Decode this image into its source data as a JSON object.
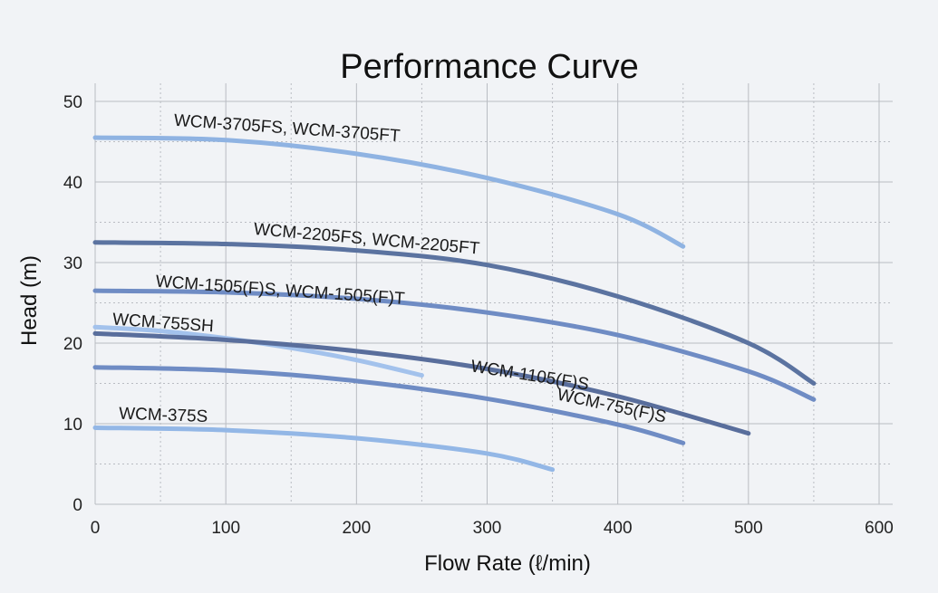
{
  "chart_data": {
    "type": "line",
    "title": "Performance Curve",
    "xlabel": "Flow Rate (ℓ/min)",
    "ylabel": "Head (m)",
    "xlim": [
      0,
      600
    ],
    "ylim": [
      0,
      50
    ],
    "xticks": [
      "0",
      "100",
      "200",
      "300",
      "400",
      "500",
      "600"
    ],
    "yticks": [
      "0",
      "10",
      "20",
      "30",
      "40",
      "50"
    ],
    "grid": true,
    "series": [
      {
        "name": "WCM-3705FS, WCM-3705FT",
        "color": "#8fb3e2",
        "points": [
          [
            0,
            45.5
          ],
          [
            100,
            45.2
          ],
          [
            200,
            43.5
          ],
          [
            300,
            40.5
          ],
          [
            400,
            36.0
          ],
          [
            450,
            32.0
          ]
        ]
      },
      {
        "name": "WCM-2205FS, WCM-2205FT",
        "color": "#5b73a0",
        "points": [
          [
            0,
            32.5
          ],
          [
            100,
            32.3
          ],
          [
            200,
            31.5
          ],
          [
            300,
            29.7
          ],
          [
            400,
            25.8
          ],
          [
            500,
            20.0
          ],
          [
            550,
            15.0
          ]
        ]
      },
      {
        "name": "WCM-1505(F)S, WCM-1505(F)T",
        "color": "#6f8cc4",
        "points": [
          [
            0,
            26.5
          ],
          [
            100,
            26.3
          ],
          [
            200,
            25.5
          ],
          [
            300,
            23.8
          ],
          [
            400,
            21.0
          ],
          [
            500,
            16.5
          ],
          [
            550,
            13.0
          ]
        ]
      },
      {
        "name": "WCM-755SH",
        "color": "#a3c2ec",
        "points": [
          [
            0,
            22.0
          ],
          [
            50,
            21.5
          ],
          [
            100,
            20.6
          ],
          [
            150,
            19.4
          ],
          [
            200,
            17.9
          ],
          [
            250,
            16.0
          ]
        ]
      },
      {
        "name": "WCM-1105(F)S",
        "color": "#596e9c",
        "points": [
          [
            0,
            21.2
          ],
          [
            100,
            20.4
          ],
          [
            200,
            19.0
          ],
          [
            300,
            16.8
          ],
          [
            400,
            13.4
          ],
          [
            500,
            8.8
          ]
        ]
      },
      {
        "name": "WCM-755(F)S",
        "color": "#6f8cc4",
        "points": [
          [
            0,
            17.0
          ],
          [
            100,
            16.6
          ],
          [
            200,
            15.3
          ],
          [
            300,
            13.1
          ],
          [
            400,
            9.9
          ],
          [
            450,
            7.6
          ]
        ]
      },
      {
        "name": "WCM-375S",
        "color": "#93b7e6",
        "points": [
          [
            0,
            9.5
          ],
          [
            100,
            9.2
          ],
          [
            200,
            8.2
          ],
          [
            300,
            6.3
          ],
          [
            350,
            4.3
          ]
        ]
      }
    ]
  }
}
